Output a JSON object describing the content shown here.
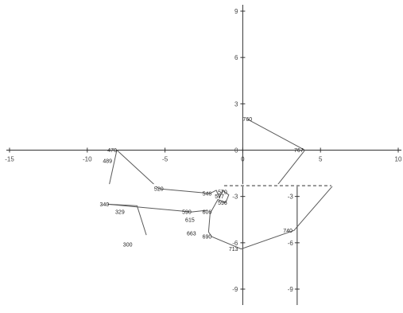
{
  "chart_data": {
    "type": "line",
    "xlim": [
      -15,
      10
    ],
    "ylim": [
      -9,
      9
    ],
    "grid": false,
    "x_ticks": [
      -15,
      -10,
      -5,
      0,
      5,
      10
    ],
    "y_ticks": [
      9,
      6,
      3,
      0,
      -3,
      -6,
      -9
    ],
    "series": [
      {
        "points": [
          {
            "label": "760",
            "x": 0.3,
            "y": 2.0
          },
          {
            "label": "767",
            "x": 4.0,
            "y": 0.0
          },
          {
            "label": "",
            "x": 2.2,
            "y": -2.3
          }
        ]
      },
      {
        "points": [
          {
            "label": "470",
            "x": -8.1,
            "y": 0.0
          },
          {
            "label": "",
            "x": -8.6,
            "y": -2.3
          }
        ]
      },
      {
        "points": [
          {
            "label": "470",
            "x": -8.1,
            "y": 0.0
          },
          {
            "label": "520",
            "x": -5.4,
            "y": -2.5
          }
        ]
      },
      {
        "points": [
          {
            "label": "520",
            "x": -5.4,
            "y": -2.5
          },
          {
            "label": "546",
            "x": -2.1,
            "y": -2.8
          },
          {
            "label": "",
            "x": -1.7,
            "y": -2.6
          },
          {
            "label": "",
            "x": -1.5,
            "y": -3.1
          },
          {
            "label": "",
            "x": -1.3,
            "y": -2.6
          },
          {
            "label": "",
            "x": -0.9,
            "y": -2.9
          },
          {
            "label": "",
            "x": -1.1,
            "y": -3.4
          },
          {
            "label": "",
            "x": -1.6,
            "y": -3.2
          },
          {
            "label": "",
            "x": -2.1,
            "y": -4.1
          },
          {
            "label": "",
            "x": -2.2,
            "y": -5.3
          },
          {
            "label": "",
            "x": -2.0,
            "y": -5.6
          },
          {
            "label": "713",
            "x": -0.1,
            "y": -6.4
          },
          {
            "label": "",
            "x": 3.3,
            "y": -5.2
          },
          {
            "label": "",
            "x": 5.8,
            "y": -2.3
          }
        ]
      },
      {
        "points": [
          {
            "label": "340",
            "x": -8.7,
            "y": -3.5
          },
          {
            "label": "",
            "x": -3.3,
            "y": -4.0
          },
          {
            "label": "",
            "x": -2.3,
            "y": -3.9
          }
        ]
      },
      {
        "points": [
          {
            "label": "",
            "x": -8.7,
            "y": -3.5
          },
          {
            "label": "",
            "x": -6.8,
            "y": -3.6
          },
          {
            "label": "",
            "x": -6.2,
            "y": -5.5
          }
        ]
      }
    ],
    "labels": [
      {
        "text": "760",
        "x": 0.3,
        "y": 2.0
      },
      {
        "text": "767",
        "x": 3.6,
        "y": 0.0
      },
      {
        "text": "470",
        "x": -8.4,
        "y": 0.0
      },
      {
        "text": "489",
        "x": -8.7,
        "y": -0.7
      },
      {
        "text": "520",
        "x": -5.4,
        "y": -2.5
      },
      {
        "text": "546",
        "x": -2.3,
        "y": -2.8
      },
      {
        "text": "570",
        "x": -1.3,
        "y": -2.7
      },
      {
        "text": "577",
        "x": -1.5,
        "y": -3.0
      },
      {
        "text": "596",
        "x": -1.3,
        "y": -3.4
      },
      {
        "text": "340",
        "x": -8.9,
        "y": -3.5
      },
      {
        "text": "329",
        "x": -7.9,
        "y": -4.0
      },
      {
        "text": "590",
        "x": -3.6,
        "y": -4.0
      },
      {
        "text": "606",
        "x": -2.3,
        "y": -4.0
      },
      {
        "text": "615",
        "x": -3.4,
        "y": -4.5
      },
      {
        "text": "663",
        "x": -3.3,
        "y": -5.4
      },
      {
        "text": "690",
        "x": -2.3,
        "y": -5.6
      },
      {
        "text": "713",
        "x": -0.6,
        "y": -6.4
      },
      {
        "text": "740",
        "x": 2.9,
        "y": -5.2
      },
      {
        "text": "300",
        "x": -7.4,
        "y": -6.1
      }
    ]
  }
}
